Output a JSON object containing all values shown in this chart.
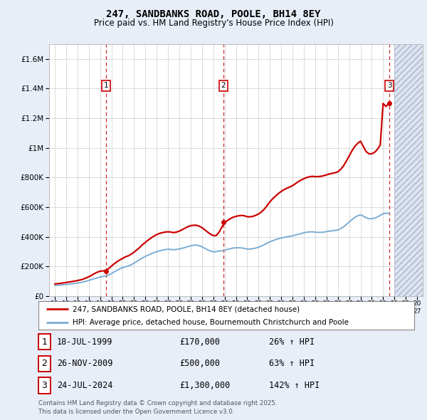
{
  "title": "247, SANDBANKS ROAD, POOLE, BH14 8EY",
  "subtitle": "Price paid vs. HM Land Registry's House Price Index (HPI)",
  "legend_line1": "247, SANDBANKS ROAD, POOLE, BH14 8EY (detached house)",
  "legend_line2": "HPI: Average price, detached house, Bournemouth Christchurch and Poole",
  "footnote1": "Contains HM Land Registry data © Crown copyright and database right 2025.",
  "footnote2": "This data is licensed under the Open Government Licence v3.0.",
  "transactions": [
    {
      "num": "1",
      "date": "18-JUL-1999",
      "price": "£170,000",
      "change": "26% ↑ HPI",
      "year": 1999.54,
      "value": 170000
    },
    {
      "num": "2",
      "date": "26-NOV-2009",
      "price": "£500,000",
      "change": "63% ↑ HPI",
      "year": 2009.9,
      "value": 500000
    },
    {
      "num": "3",
      "date": "24-JUL-2024",
      "price": "£1,300,000",
      "change": "142% ↑ HPI",
      "year": 2024.56,
      "value": 1300000
    }
  ],
  "property_color": "#cc0000",
  "hpi_color": "#7aadd4",
  "background_color": "#e8eef8",
  "plot_bg": "#ffffff",
  "ylim": [
    0,
    1700000
  ],
  "xlim": [
    1994.5,
    2027.5
  ],
  "future_start": 2025.0,
  "property_line": {
    "years": [
      1995.0,
      1995.25,
      1995.5,
      1995.75,
      1996.0,
      1996.25,
      1996.5,
      1996.75,
      1997.0,
      1997.25,
      1997.5,
      1997.75,
      1998.0,
      1998.25,
      1998.5,
      1998.75,
      1999.0,
      1999.25,
      1999.5,
      1999.75,
      2000.0,
      2000.25,
      2000.5,
      2000.75,
      2001.0,
      2001.25,
      2001.5,
      2001.75,
      2002.0,
      2002.25,
      2002.5,
      2002.75,
      2003.0,
      2003.25,
      2003.5,
      2003.75,
      2004.0,
      2004.25,
      2004.5,
      2004.75,
      2005.0,
      2005.25,
      2005.5,
      2005.75,
      2006.0,
      2006.25,
      2006.5,
      2006.75,
      2007.0,
      2007.25,
      2007.5,
      2007.75,
      2008.0,
      2008.25,
      2008.5,
      2008.75,
      2009.0,
      2009.25,
      2009.5,
      2009.75,
      2010.0,
      2010.25,
      2010.5,
      2010.75,
      2011.0,
      2011.25,
      2011.5,
      2011.75,
      2012.0,
      2012.25,
      2012.5,
      2012.75,
      2013.0,
      2013.25,
      2013.5,
      2013.75,
      2014.0,
      2014.25,
      2014.5,
      2014.75,
      2015.0,
      2015.25,
      2015.5,
      2015.75,
      2016.0,
      2016.25,
      2016.5,
      2016.75,
      2017.0,
      2017.25,
      2017.5,
      2017.75,
      2018.0,
      2018.25,
      2018.5,
      2018.75,
      2019.0,
      2019.25,
      2019.5,
      2019.75,
      2020.0,
      2020.25,
      2020.5,
      2020.75,
      2021.0,
      2021.25,
      2021.5,
      2021.75,
      2022.0,
      2022.25,
      2022.5,
      2022.75,
      2023.0,
      2023.25,
      2023.5,
      2023.75,
      2024.0,
      2024.25,
      2024.56
    ],
    "values": [
      82000,
      84000,
      86000,
      89000,
      92000,
      95000,
      98000,
      101000,
      105000,
      109000,
      114000,
      122000,
      130000,
      140000,
      152000,
      161000,
      168000,
      170000,
      171000,
      185000,
      202000,
      218000,
      232000,
      244000,
      255000,
      265000,
      272000,
      283000,
      296000,
      312000,
      328000,
      347000,
      362000,
      378000,
      392000,
      404000,
      415000,
      423000,
      428000,
      432000,
      434000,
      432000,
      428000,
      432000,
      438000,
      448000,
      458000,
      468000,
      475000,
      478000,
      478000,
      472000,
      462000,
      447000,
      432000,
      418000,
      408000,
      408000,
      430000,
      465000,
      495000,
      510000,
      522000,
      532000,
      538000,
      542000,
      544000,
      542000,
      535000,
      535000,
      538000,
      545000,
      554000,
      568000,
      586000,
      610000,
      636000,
      657000,
      675000,
      692000,
      706000,
      718000,
      728000,
      736000,
      745000,
      758000,
      772000,
      783000,
      792000,
      800000,
      805000,
      808000,
      806000,
      806000,
      808000,
      812000,
      818000,
      824000,
      828000,
      832000,
      838000,
      855000,
      878000,
      910000,
      945000,
      980000,
      1010000,
      1030000,
      1045000,
      1010000,
      975000,
      960000,
      960000,
      970000,
      990000,
      1020000,
      1300000,
      1280000,
      1300000
    ]
  },
  "hpi_line": {
    "years": [
      1995.0,
      1995.25,
      1995.5,
      1995.75,
      1996.0,
      1996.25,
      1996.5,
      1996.75,
      1997.0,
      1997.25,
      1997.5,
      1997.75,
      1998.0,
      1998.25,
      1998.5,
      1998.75,
      1999.0,
      1999.25,
      1999.5,
      1999.75,
      2000.0,
      2000.25,
      2000.5,
      2000.75,
      2001.0,
      2001.25,
      2001.5,
      2001.75,
      2002.0,
      2002.25,
      2002.5,
      2002.75,
      2003.0,
      2003.25,
      2003.5,
      2003.75,
      2004.0,
      2004.25,
      2004.5,
      2004.75,
      2005.0,
      2005.25,
      2005.5,
      2005.75,
      2006.0,
      2006.25,
      2006.5,
      2006.75,
      2007.0,
      2007.25,
      2007.5,
      2007.75,
      2008.0,
      2008.25,
      2008.5,
      2008.75,
      2009.0,
      2009.25,
      2009.5,
      2009.75,
      2010.0,
      2010.25,
      2010.5,
      2010.75,
      2011.0,
      2011.25,
      2011.5,
      2011.75,
      2012.0,
      2012.25,
      2012.5,
      2012.75,
      2013.0,
      2013.25,
      2013.5,
      2013.75,
      2014.0,
      2014.25,
      2014.5,
      2014.75,
      2015.0,
      2015.25,
      2015.5,
      2015.75,
      2016.0,
      2016.25,
      2016.5,
      2016.75,
      2017.0,
      2017.25,
      2017.5,
      2017.75,
      2018.0,
      2018.25,
      2018.5,
      2018.75,
      2019.0,
      2019.25,
      2019.5,
      2019.75,
      2020.0,
      2020.25,
      2020.5,
      2020.75,
      2021.0,
      2021.25,
      2021.5,
      2021.75,
      2022.0,
      2022.25,
      2022.5,
      2022.75,
      2023.0,
      2023.25,
      2023.5,
      2023.75,
      2024.0,
      2024.25,
      2024.56
    ],
    "values": [
      72000,
      73000,
      75000,
      77000,
      79000,
      81000,
      83000,
      85000,
      88000,
      91000,
      95000,
      100000,
      106000,
      112000,
      118000,
      123000,
      128000,
      132000,
      135000,
      142000,
      152000,
      163000,
      174000,
      184000,
      192000,
      198000,
      204000,
      212000,
      222000,
      234000,
      246000,
      258000,
      268000,
      277000,
      285000,
      293000,
      299000,
      305000,
      310000,
      314000,
      316000,
      315000,
      313000,
      315000,
      318000,
      323000,
      328000,
      334000,
      339000,
      343000,
      344000,
      340000,
      333000,
      323000,
      312000,
      304000,
      299000,
      300000,
      303000,
      306000,
      310000,
      315000,
      320000,
      324000,
      326000,
      326000,
      325000,
      322000,
      317000,
      317000,
      320000,
      324000,
      330000,
      338000,
      347000,
      357000,
      366000,
      374000,
      381000,
      387000,
      392000,
      396000,
      400000,
      403000,
      407000,
      412000,
      417000,
      422000,
      427000,
      431000,
      433000,
      434000,
      431000,
      430000,
      430000,
      432000,
      435000,
      438000,
      441000,
      443000,
      446000,
      455000,
      467000,
      483000,
      500000,
      516000,
      531000,
      542000,
      548000,
      540000,
      528000,
      522000,
      522000,
      526000,
      534000,
      545000,
      556000,
      558000,
      560000
    ]
  }
}
